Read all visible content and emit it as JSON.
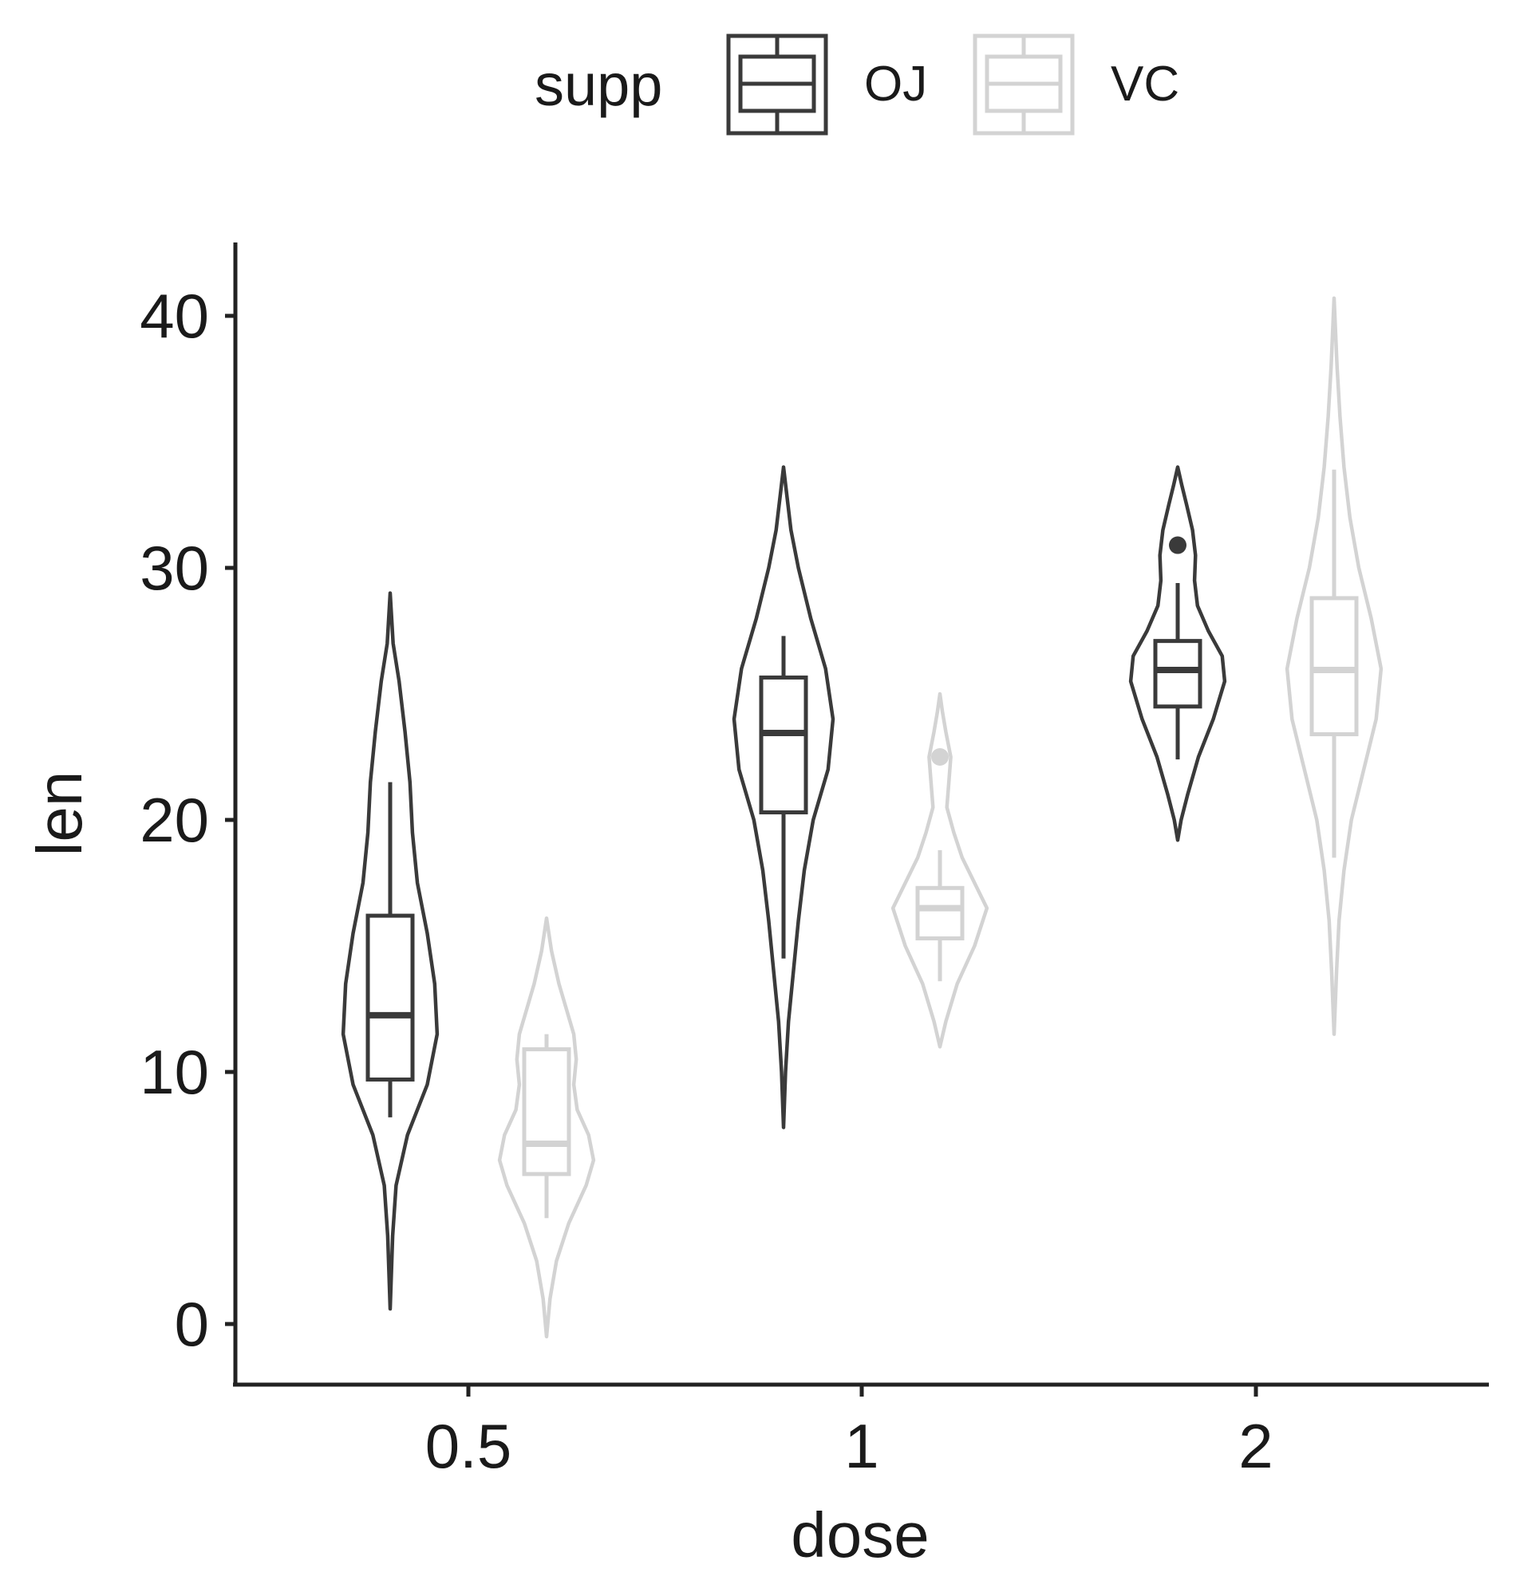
{
  "chart_data": {
    "type": "violin",
    "title": "",
    "xlabel": "dose",
    "ylabel": "len",
    "ylim": [
      -2.5,
      42.7
    ],
    "y_ticks": [
      0,
      10,
      20,
      30,
      40
    ],
    "categories": [
      "0.5",
      "1",
      "2"
    ],
    "grid": false,
    "legend": {
      "title": "supp",
      "position": "top",
      "entries": [
        "OJ",
        "VC"
      ]
    },
    "series": [
      {
        "name": "OJ",
        "color": "#3a3a3a",
        "groups": [
          {
            "dose": "0.5",
            "violin": {
              "min": 0.6,
              "max": 29.0,
              "density": [
                [
                  0.6,
                  0.0
                ],
                [
                  3.5,
                  0.05
                ],
                [
                  5.5,
                  0.12
                ],
                [
                  7.5,
                  0.35
                ],
                [
                  9.5,
                  0.75
                ],
                [
                  11.5,
                  0.95
                ],
                [
                  13.5,
                  0.9
                ],
                [
                  15.5,
                  0.75
                ],
                [
                  17.5,
                  0.55
                ],
                [
                  19.5,
                  0.45
                ],
                [
                  21.5,
                  0.4
                ],
                [
                  23.5,
                  0.3
                ],
                [
                  25.5,
                  0.18
                ],
                [
                  27.0,
                  0.06
                ],
                [
                  29.0,
                  0.0
                ]
              ]
            },
            "box": {
              "q1": 9.7,
              "median": 12.25,
              "q3": 16.2,
              "whisker_low": 8.2,
              "whisker_high": 21.5
            },
            "outliers": []
          },
          {
            "dose": "1",
            "violin": {
              "min": 7.8,
              "max": 34.0,
              "density": [
                [
                  7.8,
                  0.0
                ],
                [
                  10.0,
                  0.04
                ],
                [
                  12.0,
                  0.1
                ],
                [
                  14.0,
                  0.2
                ],
                [
                  16.0,
                  0.3
                ],
                [
                  18.0,
                  0.42
                ],
                [
                  20.0,
                  0.6
                ],
                [
                  22.0,
                  0.9
                ],
                [
                  24.0,
                  1.0
                ],
                [
                  26.0,
                  0.85
                ],
                [
                  28.0,
                  0.55
                ],
                [
                  30.0,
                  0.3
                ],
                [
                  31.5,
                  0.15
                ],
                [
                  33.0,
                  0.06
                ],
                [
                  34.0,
                  0.0
                ]
              ]
            },
            "box": {
              "q1": 20.3,
              "median": 23.45,
              "q3": 25.65,
              "whisker_low": 14.5,
              "whisker_high": 27.3
            },
            "outliers": []
          },
          {
            "dose": "2",
            "violin": {
              "min": 19.2,
              "max": 34.0,
              "density": [
                [
                  19.2,
                  0.0
                ],
                [
                  20.0,
                  0.07
                ],
                [
                  21.0,
                  0.2
                ],
                [
                  22.5,
                  0.42
                ],
                [
                  24.0,
                  0.72
                ],
                [
                  25.5,
                  0.95
                ],
                [
                  26.5,
                  0.9
                ],
                [
                  27.5,
                  0.62
                ],
                [
                  28.5,
                  0.4
                ],
                [
                  29.5,
                  0.34
                ],
                [
                  30.5,
                  0.36
                ],
                [
                  31.5,
                  0.3
                ],
                [
                  32.5,
                  0.18
                ],
                [
                  33.3,
                  0.08
                ],
                [
                  34.0,
                  0.0
                ]
              ]
            },
            "box": {
              "q1": 24.5,
              "median": 25.95,
              "q3": 27.1,
              "whisker_low": 22.4,
              "whisker_high": 29.4
            },
            "outliers": [
              30.9
            ]
          }
        ]
      },
      {
        "name": "VC",
        "color": "#d3d3d3",
        "groups": [
          {
            "dose": "0.5",
            "violin": {
              "min": -0.5,
              "max": 16.1,
              "density": [
                [
                  -0.5,
                  0.0
                ],
                [
                  1.0,
                  0.07
                ],
                [
                  2.5,
                  0.2
                ],
                [
                  4.0,
                  0.45
                ],
                [
                  5.5,
                  0.8
                ],
                [
                  6.5,
                  0.95
                ],
                [
                  7.5,
                  0.85
                ],
                [
                  8.5,
                  0.62
                ],
                [
                  9.5,
                  0.55
                ],
                [
                  10.5,
                  0.6
                ],
                [
                  11.5,
                  0.55
                ],
                [
                  12.5,
                  0.4
                ],
                [
                  13.5,
                  0.25
                ],
                [
                  14.8,
                  0.1
                ],
                [
                  16.1,
                  0.0
                ]
              ]
            },
            "box": {
              "q1": 5.95,
              "median": 7.15,
              "q3": 10.9,
              "whisker_low": 4.2,
              "whisker_high": 11.5
            },
            "outliers": []
          },
          {
            "dose": "1",
            "violin": {
              "min": 11.0,
              "max": 25.0,
              "density": [
                [
                  11.0,
                  0.0
                ],
                [
                  12.0,
                  0.12
                ],
                [
                  13.5,
                  0.35
                ],
                [
                  15.0,
                  0.7
                ],
                [
                  16.5,
                  0.95
                ],
                [
                  17.5,
                  0.7
                ],
                [
                  18.5,
                  0.45
                ],
                [
                  19.5,
                  0.28
                ],
                [
                  20.5,
                  0.14
                ],
                [
                  21.5,
                  0.18
                ],
                [
                  22.5,
                  0.22
                ],
                [
                  23.5,
                  0.12
                ],
                [
                  24.3,
                  0.05
                ],
                [
                  25.0,
                  0.0
                ]
              ]
            },
            "box": {
              "q1": 15.3,
              "median": 16.5,
              "q3": 17.3,
              "whisker_low": 13.6,
              "whisker_high": 18.8
            },
            "outliers": [
              22.5
            ]
          },
          {
            "dose": "2",
            "violin": {
              "min": 11.5,
              "max": 40.7,
              "density": [
                [
                  11.5,
                  0.0
                ],
                [
                  14.0,
                  0.05
                ],
                [
                  16.0,
                  0.1
                ],
                [
                  18.0,
                  0.2
                ],
                [
                  20.0,
                  0.35
                ],
                [
                  22.0,
                  0.6
                ],
                [
                  24.0,
                  0.85
                ],
                [
                  26.0,
                  0.95
                ],
                [
                  28.0,
                  0.75
                ],
                [
                  30.0,
                  0.5
                ],
                [
                  32.0,
                  0.32
                ],
                [
                  34.0,
                  0.2
                ],
                [
                  36.0,
                  0.12
                ],
                [
                  38.0,
                  0.06
                ],
                [
                  40.7,
                  0.0
                ]
              ]
            },
            "box": {
              "q1": 23.4,
              "median": 25.95,
              "q3": 28.8,
              "whisker_low": 18.5,
              "whisker_high": 33.9
            },
            "outliers": []
          }
        ]
      }
    ]
  }
}
